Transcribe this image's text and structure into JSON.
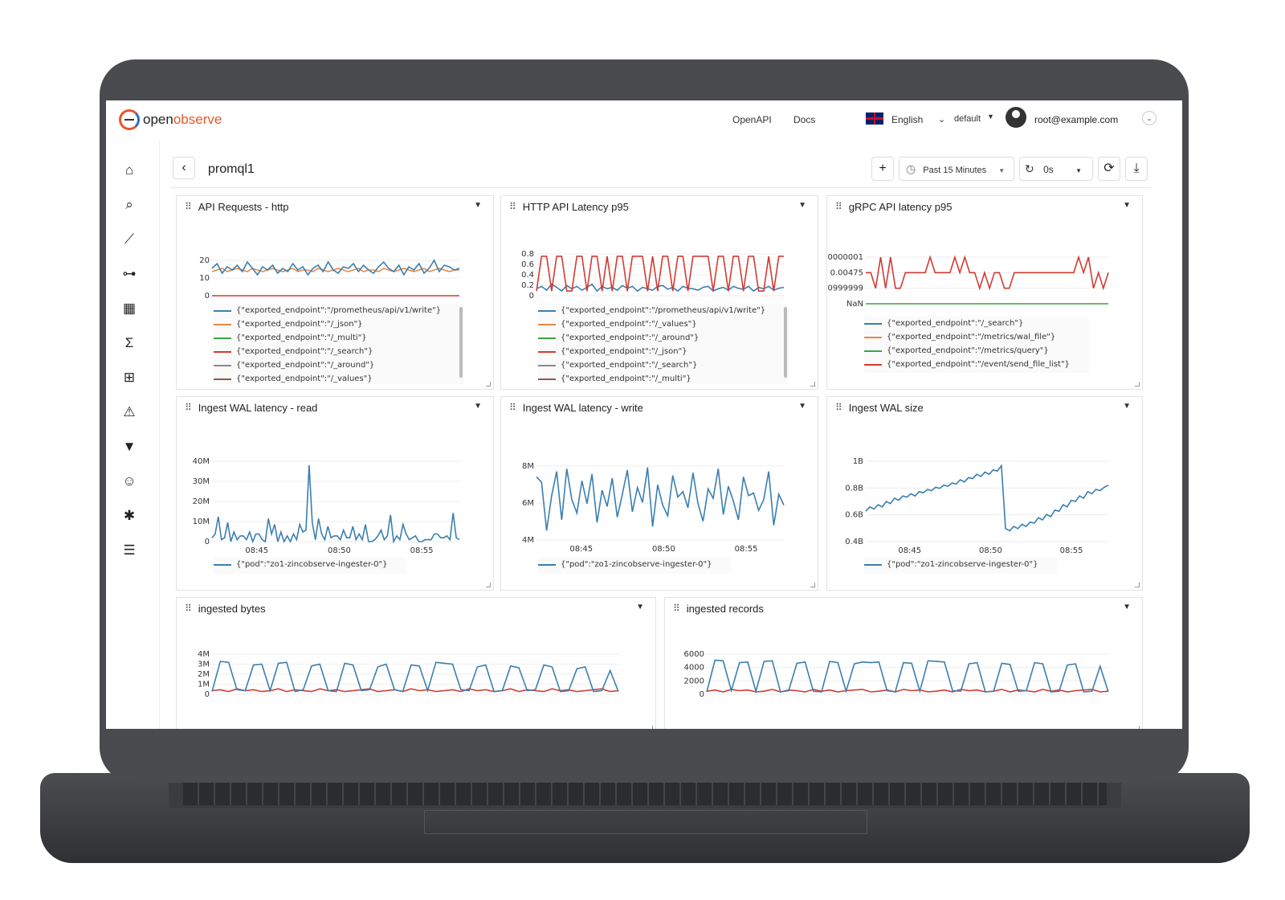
{
  "header": {
    "logo_open": "open",
    "logo_observe": "observe",
    "links": [
      "OpenAPI",
      "Docs"
    ],
    "language": "English",
    "org": "default",
    "user": "root@example.com"
  },
  "sidebar": {
    "icons": [
      "home-icon",
      "search-icon",
      "metrics-icon",
      "traces-icon",
      "dashboards-icon",
      "functions-icon",
      "streams-icon",
      "alerts-icon",
      "ingestion-icon",
      "iam-icon",
      "slack-icon",
      "settings-icon"
    ]
  },
  "toolbar": {
    "back": "‹",
    "title": "promql1",
    "add": "+",
    "time_range": "Past 15 Minutes",
    "refresh_interval": "0s",
    "refresh": "⟳",
    "download": "⤓"
  },
  "colors": {
    "blue": "#3a7fb0",
    "orange": "#e8884a",
    "green": "#3ca447",
    "red": "#d23b32",
    "grey": "#8a8a8a",
    "brown": "#8b5a4b",
    "purple": "#9467bd",
    "yellow": "#c9b83a"
  },
  "panels": [
    {
      "title": "API Requests - http",
      "yticks": [
        "20",
        "10",
        "0"
      ],
      "xticks": [],
      "legend": [
        "{\"exported_endpoint\":\"/prometheus/api/v1/write\"}",
        "{\"exported_endpoint\":\"/_json\"}",
        "{\"exported_endpoint\":\"/_multi\"}",
        "{\"exported_endpoint\":\"/_search\"}",
        "{\"exported_endpoint\":\"/_around\"}",
        "{\"exported_endpoint\":\"/_values\"}"
      ]
    },
    {
      "title": "HTTP API Latency p95",
      "yticks": [
        "0.8",
        "0.6",
        "0.4",
        "0.2",
        "0"
      ],
      "xticks": [],
      "legend": [
        "{\"exported_endpoint\":\"/prometheus/api/v1/write\"}",
        "{\"exported_endpoint\":\"/_values\"}",
        "{\"exported_endpoint\":\"/_around\"}",
        "{\"exported_endpoint\":\"/_json\"}",
        "{\"exported_endpoint\":\"/_search\"}",
        "{\"exported_endpoint\":\"/_multi\"}"
      ]
    },
    {
      "title": "gRPC API latency p95",
      "yticks": [
        "0000001",
        "0.00475",
        "0999999",
        "NaN"
      ],
      "xticks": [],
      "legend": [
        "{\"exported_endpoint\":\"/_search\"}",
        "{\"exported_endpoint\":\"/metrics/wal_file\"}",
        "{\"exported_endpoint\":\"/metrics/query\"}",
        "{\"exported_endpoint\":\"/event/send_file_list\"}"
      ]
    },
    {
      "title": "Ingest WAL latency - read",
      "yticks": [
        "40M",
        "30M",
        "20M",
        "10M",
        "0"
      ],
      "xticks": [
        "08:45",
        "08:50",
        "08:55"
      ],
      "legend": [
        "{\"pod\":\"zo1-zincobserve-ingester-0\"}"
      ]
    },
    {
      "title": "Ingest WAL latency - write",
      "yticks": [
        "8M",
        "6M",
        "4M"
      ],
      "xticks": [
        "08:45",
        "08:50",
        "08:55"
      ],
      "legend": [
        "{\"pod\":\"zo1-zincobserve-ingester-0\"}"
      ]
    },
    {
      "title": "Ingest WAL size",
      "yticks": [
        "1B",
        "0.8B",
        "0.6B",
        "0.4B"
      ],
      "xticks": [
        "08:45",
        "08:50",
        "08:55"
      ],
      "legend": [
        "{\"pod\":\"zo1-zincobserve-ingester-0\"}"
      ]
    },
    {
      "title": "ingested bytes",
      "yticks": [
        "4M",
        "3M",
        "2M",
        "1M",
        "0"
      ],
      "xticks": [],
      "legend": []
    },
    {
      "title": "ingested records",
      "yticks": [
        "6000",
        "4000",
        "2000",
        "0"
      ],
      "xticks": [],
      "legend": []
    }
  ],
  "chart_data": [
    {
      "type": "line",
      "title": "API Requests - http",
      "ylim": [
        0,
        22
      ],
      "series": [
        {
          "name": "{\"exported_endpoint\":\"/prometheus/api/v1/write\"}",
          "values": [
            17,
            20,
            14,
            18,
            16,
            19,
            15,
            21,
            17,
            13,
            18,
            16,
            19,
            14,
            17,
            15,
            20,
            16,
            18,
            13,
            17,
            19,
            15,
            21,
            16,
            14,
            18,
            17,
            20,
            15,
            19,
            16,
            14,
            18,
            21,
            17,
            15,
            19,
            13,
            18,
            16,
            20,
            14,
            17,
            22,
            15,
            19,
            18,
            16,
            17
          ]
        },
        {
          "name": "{\"exported_endpoint\":\"/_json\"}",
          "values": [
            15,
            16,
            17,
            15,
            16,
            17,
            16,
            15,
            17,
            16,
            15,
            16,
            17,
            16,
            15,
            16,
            17,
            15,
            16,
            16,
            15,
            17,
            16,
            15,
            16,
            17,
            16,
            15,
            16,
            17,
            15,
            16,
            16,
            15,
            17,
            16,
            15,
            16,
            17,
            16,
            15,
            16,
            17,
            15,
            16,
            17,
            16,
            15,
            16,
            16
          ]
        },
        {
          "name": "{\"exported_endpoint\":\"/_search\"}",
          "values": [
            0,
            0,
            0,
            0,
            0,
            0,
            0,
            0,
            0,
            0,
            0,
            0,
            0,
            0,
            0,
            0,
            0,
            0,
            0,
            0,
            0,
            0,
            0,
            0,
            0,
            0,
            0,
            0,
            0,
            0,
            0,
            0,
            0,
            0,
            0,
            0,
            0,
            0,
            0,
            0,
            0,
            0,
            0,
            0,
            0,
            0,
            0,
            0,
            0,
            0
          ]
        }
      ]
    },
    {
      "type": "line",
      "title": "HTTP API Latency p95",
      "ylim": [
        0,
        0.9
      ],
      "series": [
        {
          "name": "{\"exported_endpoint\":\"/_json\"}",
          "values": [
            0.1,
            0.85,
            0.85,
            0.1,
            0.85,
            0.85,
            0.1,
            0.1,
            0.85,
            0.85,
            0.1,
            0.85,
            0.85,
            0.1,
            0.85,
            0.1,
            0.85,
            0.85,
            0.1,
            0.85,
            0.85,
            0.85,
            0.1,
            0.85,
            0.1,
            0.85,
            0.85,
            0.1,
            0.85,
            0.85,
            0.1,
            0.85,
            0.85,
            0.85,
            0.85,
            0.1,
            0.85,
            0.85,
            0.1,
            0.85,
            0.85,
            0.1,
            0.85,
            0.85,
            0.1,
            0.1,
            0.85,
            0.1,
            0.85,
            0.85
          ]
        },
        {
          "name": "{\"exported_endpoint\":\"/prometheus/api/v1/write\"}",
          "values": [
            0.15,
            0.2,
            0.12,
            0.25,
            0.18,
            0.1,
            0.22,
            0.15,
            0.2,
            0.12,
            0.18,
            0.25,
            0.1,
            0.2,
            0.15,
            0.18,
            0.12,
            0.22,
            0.16,
            0.2,
            0.1,
            0.18,
            0.15,
            0.12,
            0.2,
            0.22,
            0.14,
            0.18,
            0.1,
            0.2,
            0.16,
            0.15,
            0.12,
            0.18,
            0.2,
            0.1,
            0.15,
            0.18,
            0.12,
            0.2,
            0.16,
            0.14,
            0.2,
            0.1,
            0.18,
            0.15,
            0.2,
            0.12,
            0.16,
            0.18
          ]
        }
      ]
    },
    {
      "type": "line",
      "title": "gRPC API latency p95",
      "series": [
        {
          "name": "{\"exported_endpoint\":\"/event/send_file_list\"}",
          "values": [
            2,
            2,
            1,
            3,
            1,
            3,
            1,
            1,
            2,
            2,
            2,
            2,
            2,
            3,
            2,
            2,
            2,
            2,
            3,
            2,
            3,
            2,
            2,
            1,
            2,
            1,
            2,
            2,
            1,
            1,
            2,
            2,
            2,
            2,
            2,
            2,
            2,
            2,
            2,
            2,
            2,
            2,
            2,
            3,
            2,
            3,
            1,
            2,
            1,
            2
          ]
        },
        {
          "name": "{\"exported_endpoint\":\"/metrics/query\"}",
          "values": [
            0,
            0,
            0,
            0,
            0,
            0,
            0,
            0,
            0,
            0,
            0,
            0,
            0,
            0,
            0,
            0,
            0,
            0,
            0,
            0,
            0,
            0,
            0,
            0,
            0,
            0,
            0,
            0,
            0,
            0,
            0,
            0,
            0,
            0,
            0,
            0,
            0,
            0,
            0,
            0,
            0,
            0,
            0,
            0,
            0,
            0,
            0,
            0,
            0,
            0
          ]
        }
      ]
    },
    {
      "type": "line",
      "title": "Ingest WAL latency - read",
      "ylim": [
        0,
        42
      ],
      "series": [
        {
          "name": "{\"pod\":\"zo1-zincobserve-ingester-0\"}",
          "values": [
            2,
            4,
            13,
            1,
            2,
            10,
            0,
            5,
            1,
            3,
            3,
            1,
            5,
            0,
            4,
            4,
            1,
            0,
            12,
            4,
            9,
            0,
            5,
            0,
            3,
            0,
            4,
            1,
            9,
            5,
            6,
            40,
            10,
            1,
            12,
            4,
            1,
            8,
            2,
            3,
            3,
            1,
            6,
            2,
            2,
            8,
            1,
            4,
            1,
            9,
            0,
            0,
            1,
            3,
            6,
            1,
            3,
            14,
            0,
            3,
            1,
            9,
            4,
            1,
            2,
            3,
            0,
            0,
            1,
            1,
            1,
            4,
            4,
            2,
            2,
            3,
            1,
            15,
            2,
            1
          ]
        }
      ]
    },
    {
      "type": "line",
      "title": "Ingest WAL latency - write",
      "ylim": [
        3.5,
        9
      ],
      "series": [
        {
          "name": "{\"pod\":\"zo1-zincobserve-ingester-0\"}",
          "values": [
            8.2,
            7.8,
            4.2,
            6.8,
            8.6,
            5,
            8.8,
            6.5,
            5.5,
            7.9,
            6.2,
            8.4,
            4.8,
            7.2,
            6,
            8.1,
            5.2,
            6.9,
            8.7,
            5.6,
            7.4,
            6.3,
            8.9,
            4.5,
            7.6,
            6.1,
            5.3,
            8.3,
            6.7,
            7.1,
            5.9,
            8.5,
            6.2,
            4.9,
            7.3,
            6.6,
            8.8,
            5.4,
            7.5,
            6.4,
            5,
            8.2,
            6.8,
            7,
            5.7,
            6.5,
            8.6,
            4.6,
            6.9,
            6.1
          ]
        }
      ]
    },
    {
      "type": "line",
      "title": "Ingest WAL size",
      "ylim": [
        0.38,
        1.12
      ],
      "series": [
        {
          "name": "{\"pod\":\"zo1-zincobserve-ingester-0\"}",
          "values": [
            0.66,
            0.7,
            0.68,
            0.72,
            0.7,
            0.75,
            0.73,
            0.78,
            0.76,
            0.8,
            0.79,
            0.82,
            0.8,
            0.84,
            0.83,
            0.86,
            0.85,
            0.88,
            0.87,
            0.9,
            0.89,
            0.92,
            0.91,
            0.95,
            0.93,
            0.97,
            0.96,
            1.0,
            0.98,
            1.02,
            1.0,
            1.04,
            1.03,
            1.08,
            0.5,
            0.48,
            0.52,
            0.5,
            0.54,
            0.52,
            0.56,
            0.55,
            0.6,
            0.58,
            0.63,
            0.61,
            0.67,
            0.66,
            0.72,
            0.7,
            0.76,
            0.75,
            0.8,
            0.78,
            0.84,
            0.82,
            0.86,
            0.85,
            0.88,
            0.9
          ]
        }
      ]
    },
    {
      "type": "line",
      "title": "ingested bytes",
      "ylim": [
        0,
        4.4
      ],
      "series": [
        {
          "name": "",
          "values": [
            0.3,
            3.6,
            3.5,
            0.5,
            0.4,
            3.2,
            3.3,
            0.4,
            3.4,
            3.5,
            0.3,
            0.5,
            3.1,
            3.3,
            0.4,
            0.3,
            3.4,
            3.2,
            0.4,
            0.5,
            3.0,
            3.3,
            0.5,
            0.3,
            3.2,
            3.1,
            0.4,
            3.5,
            3.4,
            3.3,
            0.5,
            0.4,
            3.0,
            3.2,
            0.3,
            0.4,
            3.1,
            2.9,
            0.4,
            0.5,
            3.2,
            3.0,
            0.3,
            0.4,
            2.8,
            3.0,
            0.3,
            0.4,
            2.6,
            0.3
          ]
        },
        {
          "name": "",
          "values": [
            0.4,
            0.5,
            0.3,
            0.6,
            0.4,
            0.5,
            0.3,
            0.4,
            0.6,
            0.3,
            0.5,
            0.4,
            0.3,
            0.6,
            0.4,
            0.5,
            0.3,
            0.4,
            0.5,
            0.6,
            0.3,
            0.4,
            0.5,
            0.3,
            0.6,
            0.4,
            0.5,
            0.3,
            0.4,
            0.5,
            0.3,
            0.6,
            0.4,
            0.5,
            0.3,
            0.4,
            0.6,
            0.3,
            0.5,
            0.4,
            0.3,
            0.6,
            0.4,
            0.5,
            0.3,
            0.4,
            0.5,
            0.6,
            0.3,
            0.4
          ]
        }
      ]
    },
    {
      "type": "line",
      "title": "ingested records",
      "ylim": [
        0,
        6600
      ],
      "series": [
        {
          "name": "",
          "values": [
            400,
            5600,
            5500,
            600,
            5200,
            5300,
            500,
            5400,
            5500,
            400,
            600,
            5100,
            5300,
            500,
            400,
            5400,
            5200,
            500,
            5000,
            5300,
            5200,
            5300,
            600,
            400,
            5200,
            5100,
            500,
            5500,
            5400,
            5300,
            600,
            500,
            5000,
            5200,
            400,
            500,
            5100,
            4900,
            500,
            600,
            5200,
            5000,
            400,
            500,
            4800,
            5000,
            400,
            500,
            4600,
            400
          ]
        },
        {
          "name": "",
          "values": [
            500,
            700,
            400,
            800,
            600,
            700,
            400,
            500,
            800,
            400,
            700,
            600,
            400,
            800,
            500,
            700,
            400,
            600,
            700,
            800,
            400,
            500,
            700,
            400,
            800,
            600,
            700,
            400,
            500,
            700,
            400,
            800,
            600,
            700,
            400,
            500,
            800,
            400,
            700,
            600,
            400,
            800,
            500,
            700,
            400,
            600,
            700,
            800,
            400,
            500
          ]
        }
      ]
    }
  ]
}
